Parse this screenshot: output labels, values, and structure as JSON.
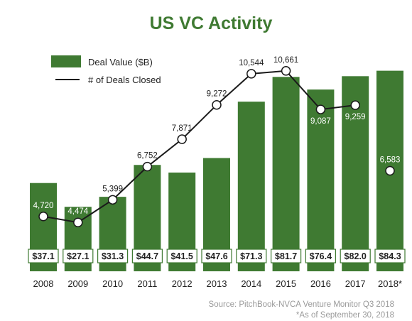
{
  "colors": {
    "bar": "#3f7a32",
    "title": "#3f7a32",
    "line": "#1a1a1a",
    "marker_fill": "#ffffff",
    "label_on_bar": "#ffffff",
    "label_off_bar": "#222222",
    "value_box_bg": "#ffffff",
    "value_box_border": "#3f7a32",
    "source_text": "#9a9a9a"
  },
  "chart_data": {
    "type": "bar",
    "title": "US VC Activity",
    "categories": [
      "2008",
      "2009",
      "2010",
      "2011",
      "2012",
      "2013",
      "2014",
      "2015",
      "2016",
      "2017",
      "2018*"
    ],
    "series": [
      {
        "name": "Deal Value ($B)",
        "type": "bar",
        "values": [
          37.1,
          27.1,
          31.3,
          44.7,
          41.5,
          47.6,
          71.3,
          81.7,
          76.4,
          82.0,
          84.3
        ],
        "labels": [
          "$37.1",
          "$27.1",
          "$31.3",
          "$44.7",
          "$41.5",
          "$47.6",
          "$71.3",
          "$81.7",
          "$76.4",
          "$82.0",
          "$84.3"
        ]
      },
      {
        "name": "# of Deals Closed",
        "type": "line",
        "values": [
          4720,
          4474,
          5399,
          6752,
          7871,
          9272,
          10544,
          10661,
          9087,
          9259,
          6583
        ],
        "labels": [
          "4,720",
          "4,474",
          "5,399",
          "6,752",
          "7,871",
          "9,272",
          "10,544",
          "10,661",
          "9,087",
          "9,259",
          "6,583"
        ],
        "connected_through_index": 9
      }
    ],
    "legend": "top-left",
    "grid": false
  },
  "footer": {
    "source": "Source: PitchBook-NVCA Venture Monitor Q3 2018",
    "note": "*As of September 30, 2018"
  }
}
